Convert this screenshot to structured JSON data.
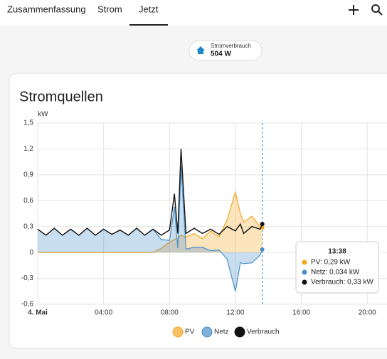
{
  "tabs": [
    "Zusammenfassung",
    "Strom",
    "Jetzt"
  ],
  "badge": {
    "label": "Stromverbrauch",
    "value": "504 W"
  },
  "card": {
    "title": "Stromquellen"
  },
  "chart_data": {
    "type": "area",
    "y_label": "kW",
    "x": [
      0,
      0.5,
      1,
      1.5,
      2,
      2.5,
      3,
      3.5,
      4,
      4.5,
      5,
      5.5,
      6,
      6.5,
      7,
      7.5,
      8,
      8.3,
      8.5,
      8.7,
      9,
      9.5,
      10,
      10.5,
      11,
      11.5,
      12,
      12.3,
      12.5,
      13,
      13.5,
      13.63
    ],
    "xlim": [
      0,
      21.2
    ],
    "xticks": [
      {
        "value": 0,
        "label": "4. Mai"
      },
      {
        "value": 4,
        "label": "04:00"
      },
      {
        "value": 8,
        "label": "08:00"
      },
      {
        "value": 12,
        "label": "12:00"
      },
      {
        "value": 16,
        "label": "16:00"
      },
      {
        "value": 20,
        "label": "20:00"
      }
    ],
    "ylim": [
      -0.6,
      1.5
    ],
    "yticks": [
      {
        "value": -0.6,
        "label": "-0,6"
      },
      {
        "value": -0.3,
        "label": "-0,3"
      },
      0,
      {
        "value": 0.3,
        "label": "0,3"
      },
      {
        "value": 0.6,
        "label": "0,6"
      },
      {
        "value": 0.9,
        "label": "0,9"
      },
      {
        "value": 1.2,
        "label": "1,2"
      },
      {
        "value": 1.5,
        "label": "1,5"
      }
    ],
    "grid": true,
    "series": [
      {
        "name": "PV",
        "color": "#f5a623",
        "values": [
          0,
          0,
          0,
          0,
          0,
          0,
          0,
          0,
          0,
          0,
          0,
          0,
          0,
          0,
          0,
          0.05,
          0.12,
          0.15,
          0.17,
          0.2,
          0.18,
          0.22,
          0.16,
          0.25,
          0.18,
          0.38,
          0.7,
          0.45,
          0.35,
          0.42,
          0.3,
          0.29
        ]
      },
      {
        "name": "Netz",
        "color": "#4a90c8",
        "values": [
          0.27,
          0.2,
          0.28,
          0.2,
          0.27,
          0.2,
          0.28,
          0.2,
          0.27,
          0.21,
          0.26,
          0.2,
          0.28,
          0.2,
          0.27,
          0.15,
          0.14,
          0.53,
          0.05,
          1.0,
          0.04,
          0.06,
          0.06,
          0.02,
          0.03,
          -0.08,
          -0.45,
          -0.12,
          -0.13,
          -0.12,
          -0.03,
          0.034
        ]
      },
      {
        "name": "Verbrauch",
        "color": "#111111",
        "values": [
          0.27,
          0.2,
          0.28,
          0.2,
          0.27,
          0.2,
          0.28,
          0.2,
          0.27,
          0.21,
          0.26,
          0.2,
          0.28,
          0.2,
          0.27,
          0.2,
          0.26,
          0.68,
          0.22,
          1.2,
          0.22,
          0.28,
          0.22,
          0.27,
          0.21,
          0.3,
          0.25,
          0.33,
          0.22,
          0.3,
          0.27,
          0.33
        ]
      }
    ]
  },
  "tooltip": {
    "time": "13:38",
    "lines": [
      "PV: 0,29 kW",
      "Netz: 0,034 kW",
      "Verbrauch: 0,33 kW"
    ]
  }
}
